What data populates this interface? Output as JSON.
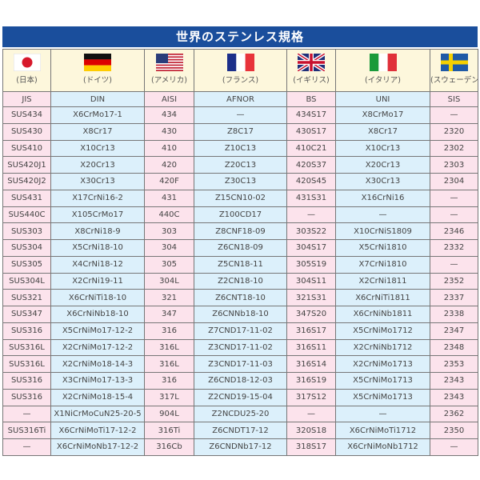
{
  "title": "世界のステンレス規格",
  "countries": [
    {
      "name": "(日本)",
      "flag": "japan-flag"
    },
    {
      "name": "(ドイツ)",
      "flag": "germany-flag"
    },
    {
      "name": "(アメリカ)",
      "flag": "usa-flag"
    },
    {
      "name": "(フランス)",
      "flag": "france-flag"
    },
    {
      "name": "(イギリス)",
      "flag": "uk-flag"
    },
    {
      "name": "(イタリア)",
      "flag": "italy-flag"
    },
    {
      "name": "(スウェーデン)",
      "flag": "sweden-flag"
    }
  ],
  "headers": [
    "JIS",
    "DIN",
    "AISI",
    "AFNOR",
    "BS",
    "UNI",
    "SIS"
  ],
  "rows": [
    [
      "SUS434",
      "X6CrMo17-1",
      "434",
      "—",
      "434S17",
      "X8CrMo17",
      "—"
    ],
    [
      "SUS430",
      "X8Cr17",
      "430",
      "Z8C17",
      "430S17",
      "X8Cr17",
      "2320"
    ],
    [
      "SUS410",
      "X10Cr13",
      "410",
      "Z10C13",
      "410C21",
      "X10Cr13",
      "2302"
    ],
    [
      "SUS420J1",
      "X20Cr13",
      "420",
      "Z20C13",
      "420S37",
      "X20Cr13",
      "2303"
    ],
    [
      "SUS420J2",
      "X30Cr13",
      "420F",
      "Z30C13",
      "420S45",
      "X30Cr13",
      "2304"
    ],
    [
      "SUS431",
      "X17CrNi16-2",
      "431",
      "Z15CN10-02",
      "431S31",
      "X16CrNi16",
      "—"
    ],
    [
      "SUS440C",
      "X105CrMo17",
      "440C",
      "Z100CD17",
      "—",
      "—",
      "—"
    ],
    [
      "SUS303",
      "X8CrNi18-9",
      "303",
      "Z8CNF18-09",
      "303S22",
      "X10CrNiS1809",
      "2346"
    ],
    [
      "SUS304",
      "X5CrNi18-10",
      "304",
      "Z6CN18-09",
      "304S17",
      "X5CrNi1810",
      "2332"
    ],
    [
      "SUS305",
      "X4CrNi18-12",
      "305",
      "Z5CN18-11",
      "305S19",
      "X7CrNi1810",
      "—"
    ],
    [
      "SUS304L",
      "X2CrNi19-11",
      "304L",
      "Z2CN18-10",
      "304S11",
      "X2CrNi1811",
      "2352"
    ],
    [
      "SUS321",
      "X6CrNiTi18-10",
      "321",
      "Z6CNT18-10",
      "321S31",
      "X6CrNiTi1811",
      "2337"
    ],
    [
      "SUS347",
      "X6CrNiNb18-10",
      "347",
      "Z6CNNb18-10",
      "347S20",
      "X6CrNiNb1811",
      "2338"
    ],
    [
      "SUS316",
      "X5CrNiMo17-12-2",
      "316",
      "Z7CND17-11-02",
      "316S17",
      "X5CrNiMo1712",
      "2347"
    ],
    [
      "SUS316L",
      "X2CrNiMo17-12-2",
      "316L",
      "Z3CND17-11-02",
      "316S11",
      "X2CrNiNb1712",
      "2348"
    ],
    [
      "SUS316L",
      "X2CrNiMo18-14-3",
      "316L",
      "Z3CND17-11-03",
      "316S14",
      "X2CrNiMo1713",
      "2353"
    ],
    [
      "SUS316",
      "X3CrNiMo17-13-3",
      "316",
      "Z6CND18-12-03",
      "316S19",
      "X5CrNiMo1713",
      "2343"
    ],
    [
      "SUS316",
      "X2CrNiMo18-15-4",
      "317L",
      "Z2CND19-15-04",
      "317S12",
      "X5CrNiMo1713",
      "2343"
    ],
    [
      "—",
      "X1NiCrMoCuN25-20-5",
      "904L",
      "Z2NCDU25-20",
      "—",
      "—",
      "2362"
    ],
    [
      "SUS316Ti",
      "X6CrNiMoTi17-12-2",
      "316Ti",
      "Z6CNDT17-12",
      "320S18",
      "X6CrNiMoTi1712",
      "2350"
    ],
    [
      "—",
      "X6CrNiMoNb17-12-2",
      "316Cb",
      "Z6CNDNb17-12",
      "318S17",
      "X6CrNiMoNb1712",
      "—"
    ]
  ],
  "colors": {
    "title_bg": "#1a4e9c",
    "pink": "#fce3ec",
    "blue": "#dcf0fb",
    "flag_row": "#fdf7dc"
  }
}
